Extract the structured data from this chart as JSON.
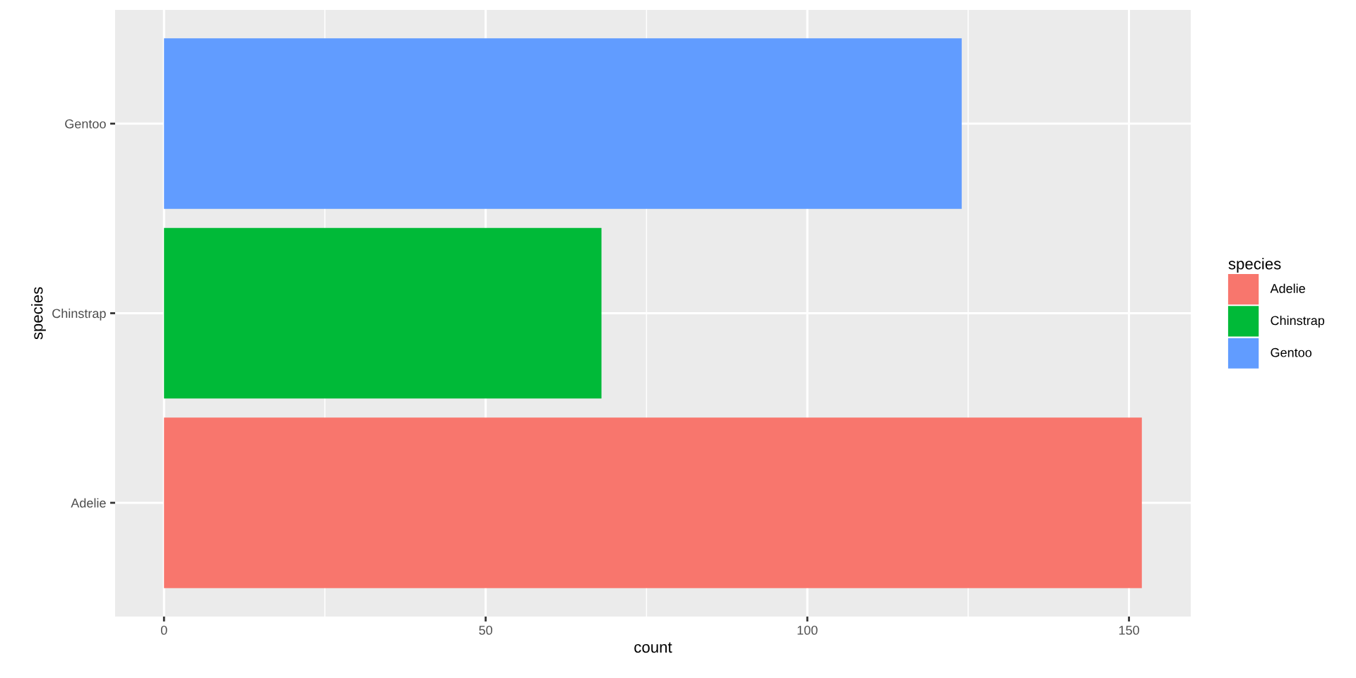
{
  "chart_data": {
    "type": "bar",
    "orientation": "horizontal",
    "stacked": true,
    "categories": [
      "Gentoo",
      "Chinstrap",
      "Adelie"
    ],
    "series": [
      {
        "name": "Adelie",
        "color": "#f8766d",
        "values": [
          null,
          null,
          152
        ]
      },
      {
        "name": "Chinstrap",
        "color": "#00ba38",
        "values": [
          null,
          68,
          null
        ]
      },
      {
        "name": "Gentoo",
        "color": "#619cff",
        "values": [
          124,
          null,
          null
        ]
      }
    ],
    "xlabel": "count",
    "ylabel": "species",
    "legend_title": "species",
    "xlim": [
      -7.6,
      159.6
    ],
    "xticks": [
      0,
      50,
      100,
      150
    ],
    "grid": true,
    "legend": "right"
  }
}
